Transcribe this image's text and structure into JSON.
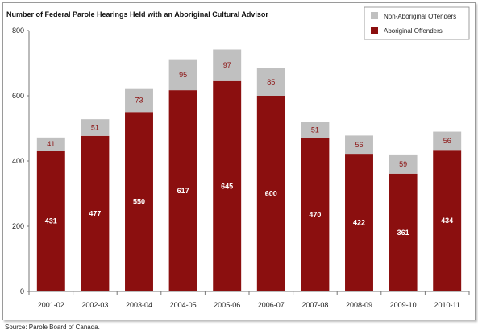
{
  "chart_data": {
    "type": "bar",
    "stacked": true,
    "title": "Number of Federal Parole Hearings Held with an Aboriginal Cultural Advisor",
    "categories": [
      "2001-02",
      "2002-03",
      "2003-04",
      "2004-05",
      "2005-06",
      "2006-07",
      "2007-08",
      "2008-09",
      "2009-10",
      "2010-11"
    ],
    "series": [
      {
        "name": "Aboriginal Offenders",
        "color": "#8b0f0f",
        "values": [
          431,
          477,
          550,
          617,
          645,
          600,
          470,
          422,
          361,
          434
        ]
      },
      {
        "name": "Non-Aboriginal Offenders",
        "color": "#c0c0c0",
        "values": [
          41,
          51,
          73,
          95,
          97,
          85,
          51,
          56,
          59,
          56
        ]
      }
    ],
    "ylim": [
      0,
      800
    ],
    "yticks": [
      "0",
      "200",
      "400",
      "600",
      "800"
    ],
    "legend_position": "top-right",
    "grid": false
  },
  "source_note": "Source:  Parole Board of Canada."
}
